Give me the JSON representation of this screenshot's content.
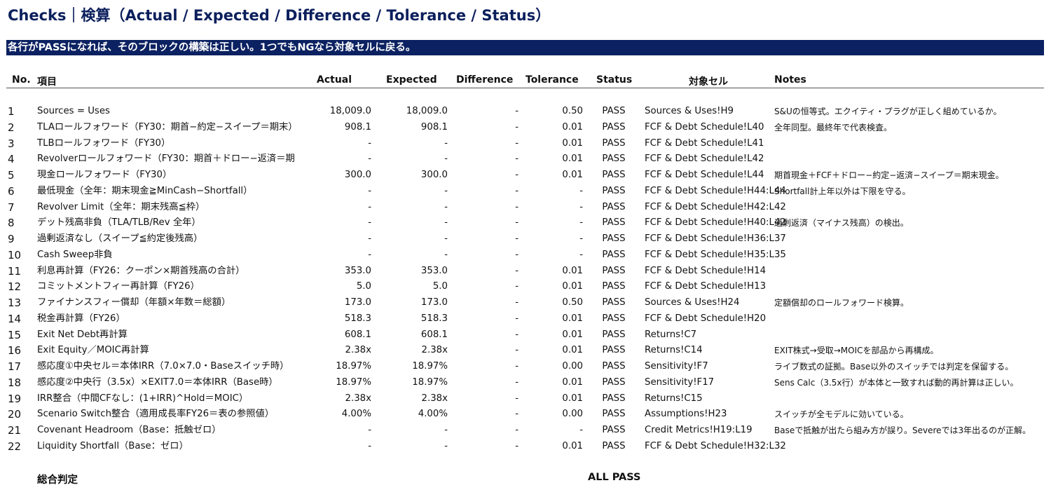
{
  "title": "Checks｜検算（Actual / Expected / Difference / Tolerance / Status）",
  "banner": "各行がPASSになれば、そのブロックの構築は正しい。1つでもNGなら対象セルに戻る。",
  "headers": {
    "no": "No.",
    "item": "項目",
    "actual": "Actual",
    "expected": "Expected",
    "difference": "Difference",
    "tolerance": "Tolerance",
    "status": "Status",
    "target": "対象セル",
    "notes": "Notes"
  },
  "rows": [
    {
      "no": "1",
      "item": "Sources = Uses",
      "actual": "18,009.0",
      "expected": "18,009.0",
      "difference": "-",
      "tolerance": "0.50",
      "status": "PASS",
      "target": "Sources & Uses!H9",
      "notes": "S&Uの恒等式。エクイティ・プラグが正しく組めているか。"
    },
    {
      "no": "2",
      "item": "TLAロールフォワード（FY30：期首−約定−スイープ＝期末）",
      "actual": "908.1",
      "expected": "908.1",
      "difference": "-",
      "tolerance": "0.01",
      "status": "PASS",
      "target": "FCF & Debt Schedule!L40",
      "notes": "全年同型。最終年で代表検査。"
    },
    {
      "no": "3",
      "item": "TLBロールフォワード（FY30）",
      "actual": "-",
      "expected": "-",
      "difference": "-",
      "tolerance": "0.01",
      "status": "PASS",
      "target": "FCF & Debt Schedule!L41",
      "notes": ""
    },
    {
      "no": "4",
      "item": "Revolverロールフォワード（FY30：期首＋ドロー−返済＝期",
      "actual": "-",
      "expected": "-",
      "difference": "-",
      "tolerance": "0.01",
      "status": "PASS",
      "target": "FCF & Debt Schedule!L42",
      "notes": ""
    },
    {
      "no": "5",
      "item": "現金ロールフォワード（FY30）",
      "actual": "300.0",
      "expected": "300.0",
      "difference": "-",
      "tolerance": "0.01",
      "status": "PASS",
      "target": "FCF & Debt Schedule!L44",
      "notes": "期首現金＋FCF＋ドロー−約定−返済−スイープ＝期末現金。"
    },
    {
      "no": "6",
      "item": "最低現金（全年：期末現金≧MinCash−Shortfall）",
      "actual": "-",
      "expected": "-",
      "difference": "-",
      "tolerance": "-",
      "status": "PASS",
      "target": "FCF & Debt Schedule!H44:L44",
      "notes": "Shortfall計上年以外は下限を守る。"
    },
    {
      "no": "7",
      "item": "Revolver Limit（全年：期末残高≦枠）",
      "actual": "-",
      "expected": "-",
      "difference": "-",
      "tolerance": "-",
      "status": "PASS",
      "target": "FCF & Debt Schedule!H42:L42",
      "notes": ""
    },
    {
      "no": "8",
      "item": "デット残高非負（TLA/TLB/Rev 全年）",
      "actual": "-",
      "expected": "-",
      "difference": "-",
      "tolerance": "-",
      "status": "PASS",
      "target": "FCF & Debt Schedule!H40:L42",
      "notes": "過剰返済（マイナス残高）の検出。"
    },
    {
      "no": "9",
      "item": "過剰返済なし（スイープ≦約定後残高）",
      "actual": "-",
      "expected": "-",
      "difference": "-",
      "tolerance": "-",
      "status": "PASS",
      "target": "FCF & Debt Schedule!H36:L37",
      "notes": ""
    },
    {
      "no": "10",
      "item": "Cash Sweep非負",
      "actual": "-",
      "expected": "-",
      "difference": "-",
      "tolerance": "-",
      "status": "PASS",
      "target": "FCF & Debt Schedule!H35:L35",
      "notes": ""
    },
    {
      "no": "11",
      "item": "利息再計算（FY26：クーポン×期首残高の合計）",
      "actual": "353.0",
      "expected": "353.0",
      "difference": "-",
      "tolerance": "0.01",
      "status": "PASS",
      "target": "FCF & Debt Schedule!H14",
      "notes": ""
    },
    {
      "no": "12",
      "item": "コミットメントフィー再計算（FY26）",
      "actual": "5.0",
      "expected": "5.0",
      "difference": "-",
      "tolerance": "0.01",
      "status": "PASS",
      "target": "FCF & Debt Schedule!H13",
      "notes": ""
    },
    {
      "no": "13",
      "item": "ファイナンスフィー償却（年額×年数＝総額）",
      "actual": "173.0",
      "expected": "173.0",
      "difference": "-",
      "tolerance": "0.50",
      "status": "PASS",
      "target": "Sources & Uses!H24",
      "notes": "定額償却のロールフォワード検算。"
    },
    {
      "no": "14",
      "item": "税金再計算（FY26）",
      "actual": "518.3",
      "expected": "518.3",
      "difference": "-",
      "tolerance": "0.01",
      "status": "PASS",
      "target": "FCF & Debt Schedule!H20",
      "notes": ""
    },
    {
      "no": "15",
      "item": "Exit Net Debt再計算",
      "actual": "608.1",
      "expected": "608.1",
      "difference": "-",
      "tolerance": "0.01",
      "status": "PASS",
      "target": "Returns!C7",
      "notes": ""
    },
    {
      "no": "16",
      "item": "Exit Equity／MOIC再計算",
      "actual": "2.38x",
      "expected": "2.38x",
      "difference": "-",
      "tolerance": "0.01",
      "status": "PASS",
      "target": "Returns!C14",
      "notes": "EXIT株式→受取→MOICを部品から再構成。"
    },
    {
      "no": "17",
      "item": "感応度①中央セル＝本体IRR（7.0×7.0・Baseスイッチ時）",
      "actual": "18.97%",
      "expected": "18.97%",
      "difference": "-",
      "tolerance": "0.00",
      "status": "PASS",
      "target": "Sensitivity!F7",
      "notes": "ライブ数式の証拠。Base以外のスイッチでは判定を保留する。"
    },
    {
      "no": "18",
      "item": "感応度②中央行（3.5x）×EXIT7.0＝本体IRR（Base時）",
      "actual": "18.97%",
      "expected": "18.97%",
      "difference": "-",
      "tolerance": "0.01",
      "status": "PASS",
      "target": "Sensitivity!F17",
      "notes": "Sens Calc（3.5x行）が本体と一致すれば動的再計算は正しい。"
    },
    {
      "no": "19",
      "item": "IRR整合（中間CFなし：(1+IRR)^Hold＝MOIC）",
      "actual": "2.38x",
      "expected": "2.38x",
      "difference": "-",
      "tolerance": "0.01",
      "status": "PASS",
      "target": "Returns!C15",
      "notes": ""
    },
    {
      "no": "20",
      "item": "Scenario Switch整合（適用成長率FY26＝表の参照値）",
      "actual": "4.00%",
      "expected": "4.00%",
      "difference": "-",
      "tolerance": "0.00",
      "status": "PASS",
      "target": "Assumptions!H23",
      "notes": "スイッチが全モデルに効いている。"
    },
    {
      "no": "21",
      "item": "Covenant Headroom（Base：抵触ゼロ）",
      "actual": "-",
      "expected": "-",
      "difference": "-",
      "tolerance": "-",
      "status": "PASS",
      "target": "Credit Metrics!H19:L19",
      "notes": "Baseで抵触が出たら組み方が誤り。Severeでは3年出るのが正解。"
    },
    {
      "no": "22",
      "item": "Liquidity Shortfall（Base：ゼロ）",
      "actual": "-",
      "expected": "-",
      "difference": "-",
      "tolerance": "0.01",
      "status": "PASS",
      "target": "FCF & Debt Schedule!H32:L32",
      "notes": ""
    }
  ],
  "footer": {
    "label": "総合判定",
    "result": "ALL PASS"
  }
}
